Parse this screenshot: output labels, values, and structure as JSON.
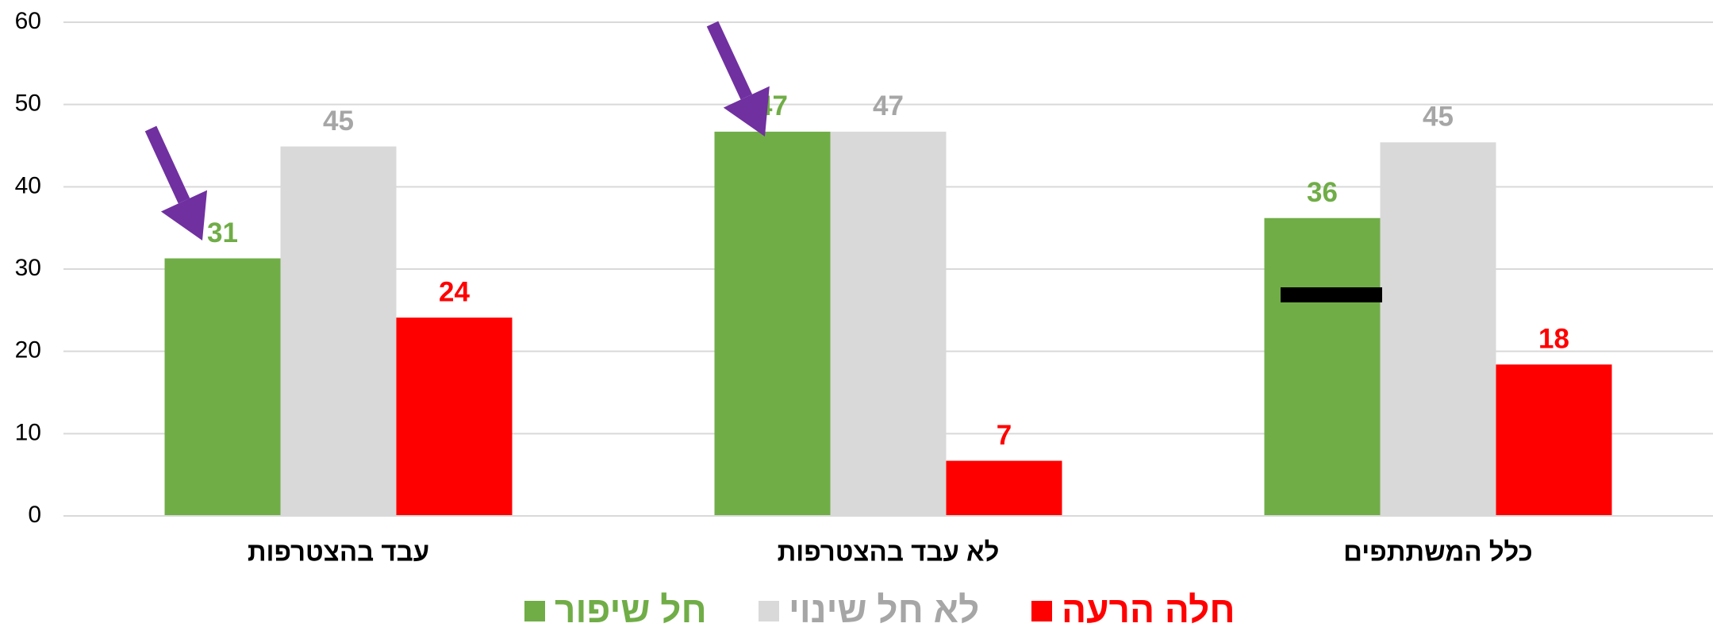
{
  "chart_data": {
    "type": "bar",
    "categories": [
      "עבד בהצטרפות",
      "לא עבד בהצטרפות",
      "כלל המשתתפים"
    ],
    "series": [
      {
        "name": "חל שיפור",
        "color": "#70ad47",
        "values": [
          31.3,
          46.7,
          36.2
        ],
        "value_labels": [
          "31",
          "47",
          "36"
        ]
      },
      {
        "name": "לא חל שינוי",
        "color": "#d9d9d9",
        "values": [
          44.9,
          46.7,
          45.4
        ],
        "value_labels": [
          "45",
          "47",
          "45"
        ]
      },
      {
        "name": "חלה הרעה",
        "color": "#ff0000",
        "values": [
          24.1,
          6.7,
          18.4
        ],
        "value_labels": [
          "24",
          "7",
          "18"
        ]
      }
    ],
    "ylim": [
      0,
      60
    ],
    "yticks": [
      0,
      10,
      20,
      30,
      40,
      50,
      60
    ],
    "grid": true,
    "legend": "bottom"
  }
}
